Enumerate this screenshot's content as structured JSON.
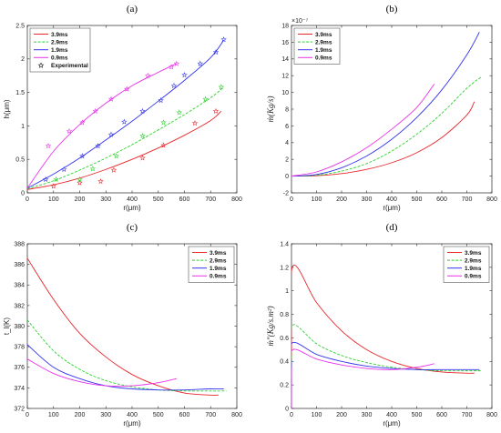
{
  "chart_data": [
    {
      "type": "line",
      "panel_label": "(a)",
      "xlabel": "r(μm)",
      "ylabel": "h(μm)",
      "xlim": [
        0,
        800
      ],
      "ylim": [
        0,
        2.5
      ],
      "xticks": [
        "0",
        "100",
        "200",
        "300",
        "400",
        "500",
        "600",
        "700",
        "800"
      ],
      "yticks": [
        "0",
        "0.5",
        "1",
        "1.5",
        "2",
        "2.5"
      ],
      "legend_position": "top-left",
      "series": [
        {
          "name": "3.9ms",
          "color": "#e8262b",
          "dash": "solid",
          "x": [
            0,
            100,
            200,
            300,
            400,
            500,
            600,
            700,
            740
          ],
          "y": [
            0.05,
            0.12,
            0.22,
            0.35,
            0.5,
            0.67,
            0.86,
            1.08,
            1.22
          ]
        },
        {
          "name": "2.9ms",
          "color": "#2cd12c",
          "dash": "dashed",
          "x": [
            0,
            100,
            200,
            300,
            400,
            500,
            600,
            700,
            750
          ],
          "y": [
            0.06,
            0.18,
            0.34,
            0.52,
            0.72,
            0.94,
            1.17,
            1.42,
            1.58
          ]
        },
        {
          "name": "1.9ms",
          "color": "#3333ee",
          "dash": "solid",
          "x": [
            0,
            100,
            200,
            300,
            400,
            500,
            600,
            700,
            750
          ],
          "y": [
            0.07,
            0.28,
            0.52,
            0.79,
            1.07,
            1.37,
            1.68,
            2.02,
            2.28
          ]
        },
        {
          "name": "0.9ms",
          "color": "#e832e8",
          "dash": "solid",
          "x": [
            0,
            100,
            200,
            300,
            400,
            500,
            570
          ],
          "y": [
            0.07,
            0.62,
            1.02,
            1.34,
            1.6,
            1.8,
            1.93
          ]
        }
      ],
      "experimental": {
        "name": "Experimental",
        "groups": [
          {
            "color": "#e8262b",
            "x": [
              100,
              200,
              280,
              330,
              440,
              520,
              640,
              720
            ],
            "y": [
              0.1,
              0.15,
              0.17,
              0.34,
              0.52,
              0.71,
              1.04,
              1.22
            ]
          },
          {
            "color": "#2cd12c",
            "x": [
              110,
              200,
              250,
              340,
              440,
              520,
              580,
              680,
              740
            ],
            "y": [
              0.2,
              0.2,
              0.36,
              0.55,
              0.85,
              1.05,
              1.2,
              1.4,
              1.58
            ]
          },
          {
            "color": "#3333ee",
            "x": [
              70,
              140,
              210,
              270,
              320,
              370,
              440,
              510,
              560,
              600,
              660,
              720,
              750
            ],
            "y": [
              0.2,
              0.35,
              0.55,
              0.7,
              0.87,
              1.06,
              1.22,
              1.38,
              1.6,
              1.76,
              1.93,
              2.1,
              2.29
            ]
          },
          {
            "color": "#e832e8",
            "x": [
              80,
              160,
              210,
              260,
              320,
              380,
              460,
              550,
              570
            ],
            "y": [
              0.7,
              0.92,
              1.05,
              1.22,
              1.4,
              1.55,
              1.75,
              1.88,
              1.93
            ]
          }
        ]
      }
    },
    {
      "type": "line",
      "panel_label": "(b)",
      "xlabel": "r(μm)",
      "ylabel": "ṁ(Kg/s)",
      "y_multiplier": "×10⁻⁷",
      "xlim": [
        0,
        800
      ],
      "ylim": [
        -2,
        18
      ],
      "xticks": [
        "0",
        "100",
        "200",
        "300",
        "400",
        "500",
        "600",
        "700",
        "800"
      ],
      "yticks": [
        "-2",
        "0",
        "2",
        "4",
        "6",
        "8",
        "10",
        "12",
        "14",
        "16",
        "18"
      ],
      "legend_position": "top-left",
      "series": [
        {
          "name": "3.9ms",
          "color": "#e8262b",
          "dash": "solid",
          "x": [
            0,
            100,
            200,
            300,
            400,
            500,
            600,
            700,
            730
          ],
          "y": [
            0,
            0.05,
            0.3,
            0.8,
            1.6,
            2.8,
            4.6,
            7.3,
            8.9
          ]
        },
        {
          "name": "2.9ms",
          "color": "#2cd12c",
          "dash": "dashed",
          "x": [
            0,
            100,
            200,
            300,
            400,
            500,
            600,
            700,
            760
          ],
          "y": [
            0,
            0.1,
            0.6,
            1.5,
            3.0,
            5.0,
            7.5,
            10.5,
            11.9
          ]
        },
        {
          "name": "1.9ms",
          "color": "#3333ee",
          "dash": "solid",
          "x": [
            0,
            100,
            200,
            300,
            400,
            500,
            600,
            700,
            750
          ],
          "y": [
            0,
            0.2,
            1.0,
            2.4,
            4.4,
            7.0,
            10.3,
            14.5,
            17.2
          ]
        },
        {
          "name": "0.9ms",
          "color": "#e832e8",
          "dash": "solid",
          "x": [
            0,
            100,
            200,
            300,
            400,
            500,
            570
          ],
          "y": [
            0,
            0.5,
            1.7,
            3.4,
            5.6,
            8.2,
            11.0
          ]
        }
      ]
    },
    {
      "type": "line",
      "panel_label": "(c)",
      "xlabel": "r(μm)",
      "ylabel": "t_l(K)",
      "xlim": [
        0,
        800
      ],
      "ylim": [
        372,
        388
      ],
      "xticks": [
        "0",
        "100",
        "200",
        "300",
        "400",
        "500",
        "600",
        "700",
        "800"
      ],
      "yticks": [
        "372",
        "374",
        "376",
        "378",
        "380",
        "382",
        "384",
        "386",
        "388"
      ],
      "legend_position": "top-right",
      "series": [
        {
          "name": "3.9ms",
          "color": "#e8262b",
          "dash": "solid",
          "x": [
            0,
            100,
            200,
            300,
            400,
            500,
            600,
            700,
            730
          ],
          "y": [
            386.6,
            382.6,
            379.3,
            377.0,
            375.3,
            374.2,
            373.5,
            373.3,
            373.3
          ]
        },
        {
          "name": "2.9ms",
          "color": "#2cd12c",
          "dash": "dashed",
          "x": [
            0,
            100,
            200,
            300,
            400,
            500,
            600,
            700,
            760
          ],
          "y": [
            380.6,
            377.6,
            375.8,
            374.7,
            374.1,
            373.8,
            373.7,
            373.7,
            373.7
          ]
        },
        {
          "name": "1.9ms",
          "color": "#3333ee",
          "dash": "solid",
          "x": [
            0,
            100,
            200,
            300,
            400,
            500,
            600,
            700,
            750
          ],
          "y": [
            378.2,
            376.0,
            374.9,
            374.2,
            373.9,
            373.8,
            373.8,
            373.9,
            373.9
          ]
        },
        {
          "name": "0.9ms",
          "color": "#e832e8",
          "dash": "solid",
          "x": [
            0,
            100,
            200,
            300,
            400,
            500,
            570
          ],
          "y": [
            376.8,
            375.4,
            374.6,
            374.2,
            374.2,
            374.5,
            374.9
          ]
        }
      ]
    },
    {
      "type": "line",
      "panel_label": "(d)",
      "xlabel": "r(μm)",
      "ylabel": "ṁ″(Kg/s.m²)",
      "xlim": [
        0,
        800
      ],
      "ylim": [
        0,
        1.4
      ],
      "xticks": [
        "0",
        "100",
        "200",
        "300",
        "400",
        "500",
        "600",
        "700",
        "800"
      ],
      "yticks": [
        "0",
        "0.2",
        "0.4",
        "0.6",
        "0.8",
        "1",
        "1.2",
        "1.4"
      ],
      "legend_position": "top-right",
      "series": [
        {
          "name": "3.9ms",
          "color": "#e8262b",
          "dash": "solid",
          "x": [
            0,
            0,
            5,
            100,
            200,
            300,
            400,
            500,
            600,
            700,
            730
          ],
          "y": [
            0,
            0.5,
            1.21,
            0.9,
            0.66,
            0.5,
            0.4,
            0.34,
            0.31,
            0.3,
            0.3
          ]
        },
        {
          "name": "2.9ms",
          "color": "#2cd12c",
          "dash": "dashed",
          "x": [
            0,
            0,
            5,
            100,
            200,
            300,
            400,
            500,
            600,
            700,
            760
          ],
          "y": [
            0,
            0.4,
            0.71,
            0.55,
            0.45,
            0.39,
            0.35,
            0.33,
            0.32,
            0.32,
            0.32
          ]
        },
        {
          "name": "1.9ms",
          "color": "#3333ee",
          "dash": "solid",
          "x": [
            0,
            0,
            5,
            100,
            200,
            300,
            400,
            500,
            600,
            700,
            750
          ],
          "y": [
            0,
            0.35,
            0.56,
            0.46,
            0.4,
            0.36,
            0.34,
            0.33,
            0.33,
            0.33,
            0.33
          ]
        },
        {
          "name": "0.9ms",
          "color": "#e832e8",
          "dash": "solid",
          "x": [
            0,
            0,
            5,
            100,
            200,
            300,
            400,
            500,
            570
          ],
          "y": [
            0,
            0.3,
            0.5,
            0.42,
            0.37,
            0.34,
            0.33,
            0.35,
            0.38
          ]
        }
      ]
    }
  ]
}
